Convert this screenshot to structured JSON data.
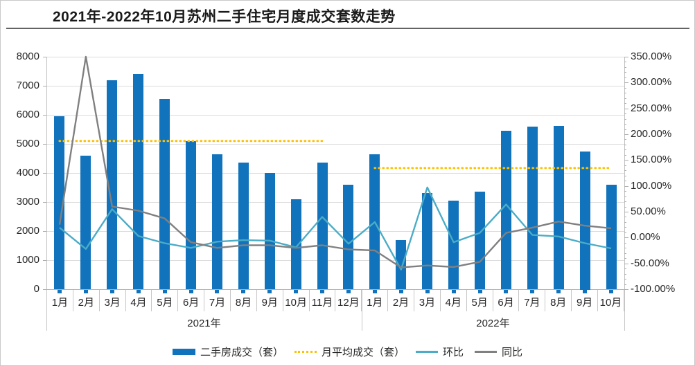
{
  "title": "2021年-2022年10月苏州二手住宅月度成交套数走势",
  "chart_data": {
    "type": "combo-bar-line",
    "title": "2021年-2022年10月苏州二手住宅月度成交套数走势",
    "grid": "horizontal",
    "legend_position": "bottom",
    "categories": [
      "1月",
      "2月",
      "3月",
      "4月",
      "5月",
      "6月",
      "7月",
      "8月",
      "9月",
      "10月",
      "11月",
      "12月",
      "1月",
      "2月",
      "3月",
      "4月",
      "5月",
      "6月",
      "7月",
      "8月",
      "9月",
      "10月"
    ],
    "category_groups": [
      {
        "label": "2021年",
        "start": 0,
        "count": 12
      },
      {
        "label": "2022年",
        "start": 12,
        "count": 10
      }
    ],
    "left_axis": {
      "min": 0,
      "max": 8000,
      "step": 1000,
      "tick_labels": [
        "8000",
        "7000",
        "6000",
        "5000",
        "4000",
        "3000",
        "2000",
        "1000",
        "0"
      ]
    },
    "right_axis": {
      "min": -100,
      "max": 350,
      "step": 50,
      "minor_step": 10,
      "tick_labels": [
        "350.00%",
        "300.00%",
        "250.00%",
        "200.00%",
        "150.00%",
        "100.00%",
        "50.00%",
        "0.00%",
        "-50.00%",
        "-100.00%"
      ]
    },
    "series": [
      {
        "name": "二手房成交（套）",
        "type": "bar",
        "axis": "left",
        "color": "#1173BC",
        "values": [
          5950,
          4600,
          7200,
          7400,
          6550,
          5100,
          4650,
          4350,
          4000,
          3100,
          4350,
          3600,
          4650,
          1700,
          3300,
          3050,
          3350,
          5450,
          5600,
          5620,
          4750,
          3600
        ]
      },
      {
        "name": "月平均成交（套）",
        "type": "dotted-line",
        "axis": "left",
        "color": "#FFC000",
        "segments": [
          {
            "from": 0,
            "to": 10,
            "value": 5100
          },
          {
            "from": 12,
            "to": 21,
            "value": 4170
          }
        ]
      },
      {
        "name": "环比",
        "type": "line",
        "axis": "right",
        "color": "#4BACC6",
        "unit": "%",
        "values": [
          19,
          -22,
          55,
          3,
          -11,
          -20,
          -8,
          -5,
          -6,
          -19,
          40,
          -12,
          30,
          -62,
          97,
          -9,
          9,
          64,
          5,
          2,
          -11,
          -21
        ]
      },
      {
        "name": "同比",
        "type": "line",
        "axis": "right",
        "color": "#808080",
        "unit": "%",
        "values": [
          25,
          350,
          60,
          52,
          37,
          -9,
          -20,
          -15,
          -15,
          -20,
          -15,
          -23,
          -25,
          -58,
          -54,
          -57,
          -47,
          9,
          19,
          31,
          23,
          18
        ]
      }
    ]
  }
}
